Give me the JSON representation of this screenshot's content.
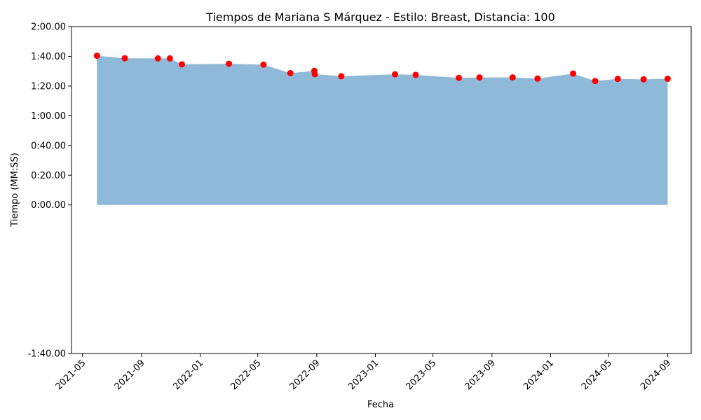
{
  "chart_data": {
    "type": "area",
    "title": "Tiempos de Mariana S Márquez - Estilo: Breast, Distancia: 100",
    "xlabel": "Fecha",
    "ylabel": "Tiempo (MM:SS)",
    "ylim_seconds": [
      -100,
      120
    ],
    "y_ticks": [
      {
        "value": -100,
        "label": "-1:40.00"
      },
      {
        "value": 0,
        "label": "0:00.00"
      },
      {
        "value": 20,
        "label": "0:20.00"
      },
      {
        "value": 40,
        "label": "0:40.00"
      },
      {
        "value": 60,
        "label": "1:00.00"
      },
      {
        "value": 80,
        "label": "1:20.00"
      },
      {
        "value": 100,
        "label": "1:40.00"
      },
      {
        "value": 120,
        "label": "2:00.00"
      }
    ],
    "xlim": [
      "2021-04-08",
      "2024-10-20"
    ],
    "x_ticks": [
      {
        "value": "2021-05-01",
        "label": "2021-05"
      },
      {
        "value": "2021-09-01",
        "label": "2021-09"
      },
      {
        "value": "2022-01-01",
        "label": "2022-01"
      },
      {
        "value": "2022-05-01",
        "label": "2022-05"
      },
      {
        "value": "2022-09-01",
        "label": "2022-09"
      },
      {
        "value": "2023-01-01",
        "label": "2023-01"
      },
      {
        "value": "2023-05-01",
        "label": "2023-05"
      },
      {
        "value": "2023-09-01",
        "label": "2023-09"
      },
      {
        "value": "2024-01-01",
        "label": "2024-01"
      },
      {
        "value": "2024-05-01",
        "label": "2024-05"
      },
      {
        "value": "2024-09-01",
        "label": "2024-09"
      }
    ],
    "area_color": "#8fb9d8",
    "marker_color": "#ff0000",
    "grid": false,
    "points": [
      {
        "date": "2021-05-31",
        "seconds": 100.4
      },
      {
        "date": "2021-07-28",
        "seconds": 98.7
      },
      {
        "date": "2021-10-05",
        "seconds": 98.6
      },
      {
        "date": "2021-10-30",
        "seconds": 98.6
      },
      {
        "date": "2021-11-24",
        "seconds": 94.6
      },
      {
        "date": "2022-03-02",
        "seconds": 95.0
      },
      {
        "date": "2022-05-13",
        "seconds": 94.4
      },
      {
        "date": "2022-07-08",
        "seconds": 88.7
      },
      {
        "date": "2022-08-27",
        "seconds": 90.2
      },
      {
        "date": "2022-08-28",
        "seconds": 88.0
      },
      {
        "date": "2022-10-22",
        "seconds": 86.6
      },
      {
        "date": "2023-02-11",
        "seconds": 87.9
      },
      {
        "date": "2023-03-26",
        "seconds": 87.5
      },
      {
        "date": "2023-06-24",
        "seconds": 85.5
      },
      {
        "date": "2023-08-06",
        "seconds": 85.8
      },
      {
        "date": "2023-10-14",
        "seconds": 85.8
      },
      {
        "date": "2023-12-05",
        "seconds": 85.0
      },
      {
        "date": "2024-02-17",
        "seconds": 88.4
      },
      {
        "date": "2024-04-03",
        "seconds": 83.4
      },
      {
        "date": "2024-05-20",
        "seconds": 84.8
      },
      {
        "date": "2024-07-13",
        "seconds": 84.5
      },
      {
        "date": "2024-09-01",
        "seconds": 84.9
      }
    ]
  }
}
